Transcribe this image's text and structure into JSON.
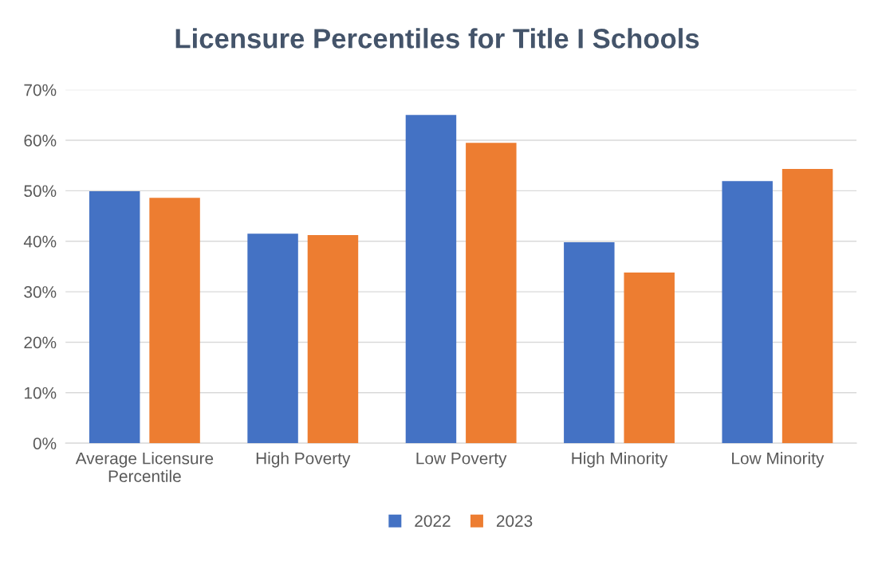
{
  "chart_data": {
    "type": "bar",
    "title": "Licensure Percentiles for Title I Schools",
    "categories": [
      "Average Licensure\nPercentile",
      "High Poverty",
      "Low Poverty",
      "High Minority",
      "Low Minority"
    ],
    "series": [
      {
        "name": "2022",
        "color": "#4472c4",
        "values": [
          49.9,
          41.5,
          65.0,
          39.8,
          51.9
        ]
      },
      {
        "name": "2023",
        "color": "#ed7d31",
        "values": [
          48.6,
          41.2,
          59.5,
          33.8,
          54.3
        ]
      }
    ],
    "ylim": [
      0,
      70
    ],
    "yticks": [
      {
        "value": 0,
        "label": "0%"
      },
      {
        "value": 10,
        "label": "10%"
      },
      {
        "value": 20,
        "label": "20%"
      },
      {
        "value": 30,
        "label": "30%"
      },
      {
        "value": 40,
        "label": "40%"
      },
      {
        "value": 50,
        "label": "50%"
      },
      {
        "value": 60,
        "label": "60%"
      },
      {
        "value": 70,
        "label": "70%"
      }
    ],
    "grid": "y",
    "legend": "bottom"
  }
}
